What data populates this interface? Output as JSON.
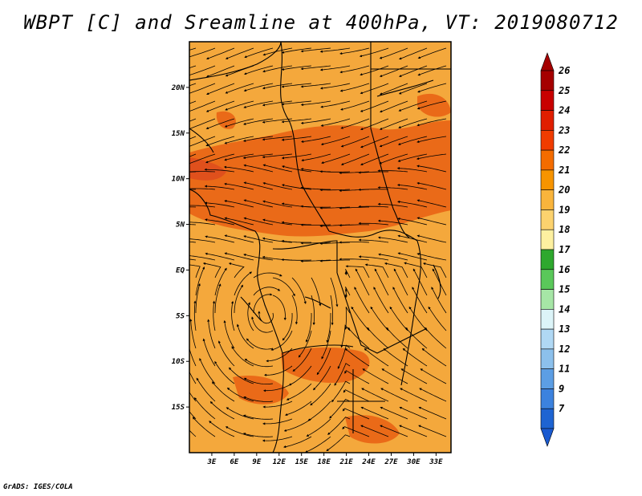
{
  "title": "WBPT [C] and Sreamline at 400hPa, VT: 2019080712",
  "footer": "GrADS: IGES/COLA",
  "map": {
    "lat_ticks": [
      {
        "label": "20N",
        "value": 20
      },
      {
        "label": "15N",
        "value": 15
      },
      {
        "label": "10N",
        "value": 10
      },
      {
        "label": "5N",
        "value": 5
      },
      {
        "label": "EQ",
        "value": 0
      },
      {
        "label": "5S",
        "value": -5
      },
      {
        "label": "10S",
        "value": -10
      },
      {
        "label": "15S",
        "value": -15
      }
    ],
    "lon_ticks": [
      {
        "label": "3E",
        "value": 3
      },
      {
        "label": "6E",
        "value": 6
      },
      {
        "label": "9E",
        "value": 9
      },
      {
        "label": "12E",
        "value": 12
      },
      {
        "label": "15E",
        "value": 15
      },
      {
        "label": "18E",
        "value": 18
      },
      {
        "label": "21E",
        "value": 21
      },
      {
        "label": "24E",
        "value": 24
      },
      {
        "label": "27E",
        "value": 27
      },
      {
        "label": "30E",
        "value": 30
      },
      {
        "label": "33E",
        "value": 33
      }
    ],
    "lon_range": [
      0,
      35
    ],
    "lat_range": [
      -20,
      25
    ]
  },
  "colorbar": {
    "levels": [
      {
        "label": "26",
        "color": "#a50000"
      },
      {
        "label": "25",
        "color": "#c80000"
      },
      {
        "label": "24",
        "color": "#e01e00"
      },
      {
        "label": "23",
        "color": "#f03c00"
      },
      {
        "label": "22",
        "color": "#f46c00"
      },
      {
        "label": "21",
        "color": "#f79400"
      },
      {
        "label": "20",
        "color": "#f9b43c"
      },
      {
        "label": "19",
        "color": "#fcd26e"
      },
      {
        "label": "18",
        "color": "#fdf0a0"
      },
      {
        "label": "17",
        "color": "#2ea82e"
      },
      {
        "label": "16",
        "color": "#5ac85a"
      },
      {
        "label": "15",
        "color": "#a6e6a6"
      },
      {
        "label": "14",
        "color": "#dcf4f8"
      },
      {
        "label": "13",
        "color": "#b0d8f4"
      },
      {
        "label": "12",
        "color": "#8cc0ec"
      },
      {
        "label": "11",
        "color": "#5c9ee4"
      },
      {
        "label": "9",
        "color": "#3c82de"
      },
      {
        "label": "7",
        "color": "#1e64d2"
      }
    ],
    "bottom_color": "#1a5ad0"
  },
  "colors": {
    "base_field": "#f4a83c",
    "band_field": "#ea6a18",
    "deep_band": "#e0501c"
  }
}
